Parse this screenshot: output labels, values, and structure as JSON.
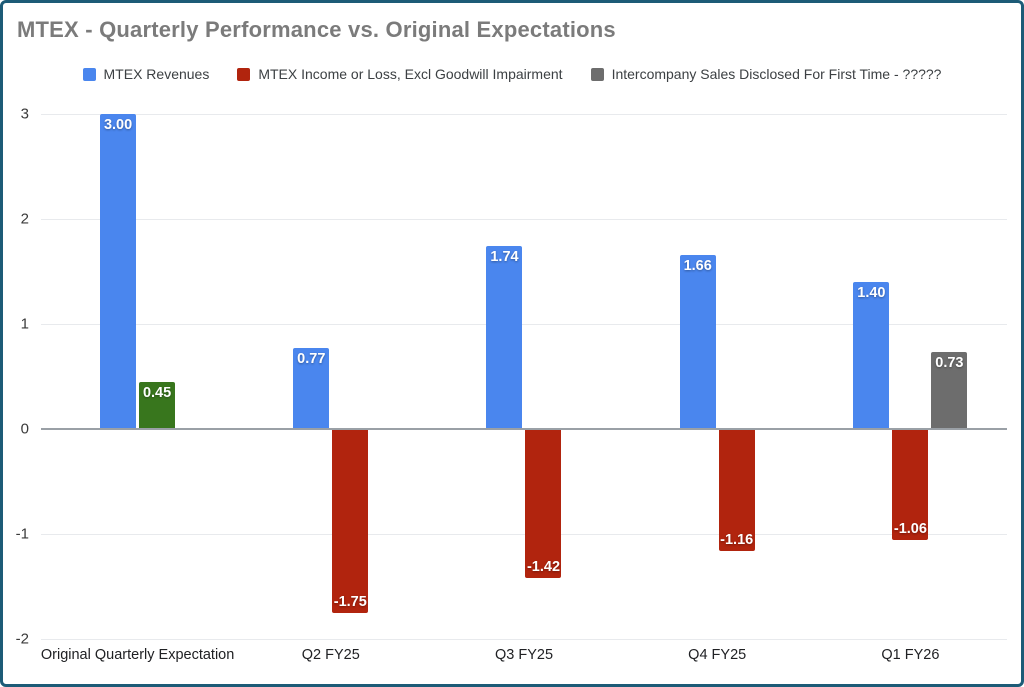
{
  "window": {
    "title": "MTEX - Quarterly Performance vs. Original Expectations"
  },
  "colors": {
    "frame_border": "#1d5b77",
    "title_text": "#7b7b7b",
    "grid_line": "#e8eaed",
    "zero_line": "#9aa0a6",
    "revenues_blue": "#4a86ee",
    "income_red": "#b1240e",
    "expectation_green": "#38761d",
    "intercompany_gray": "#6d6d6d",
    "bar_value_text": "#ffffff"
  },
  "chart_data": {
    "type": "bar",
    "title": "MTEX - Quarterly Performance vs. Original Expectations",
    "legend_position": "top",
    "grid": true,
    "ylim": [
      -2,
      3
    ],
    "yticks": [
      3,
      2,
      1,
      0,
      -1,
      -2
    ],
    "categories": [
      "Original Quarterly Expectation",
      "Q2 FY25",
      "Q3 FY25",
      "Q4 FY25",
      "Q1 FY26"
    ],
    "series": [
      {
        "key": "revenues",
        "name": "MTEX Revenues",
        "color": "#4a86ee"
      },
      {
        "key": "income",
        "name": "MTEX Income or Loss, Excl Goodwill Impairment",
        "color": "#b1240e"
      },
      {
        "key": "intercompany",
        "name": "Intercompany Sales Disclosed For First Time - ?????",
        "color": "#6d6d6d"
      }
    ],
    "groups": [
      {
        "category": "Original Quarterly Expectation",
        "bars": [
          {
            "series": 0,
            "value": 3.0,
            "label": "3.00"
          },
          {
            "series": 1,
            "value": 0.45,
            "label": "0.45",
            "color": "#38761d"
          }
        ]
      },
      {
        "category": "Q2 FY25",
        "bars": [
          {
            "series": 0,
            "value": 0.77,
            "label": "0.77"
          },
          {
            "series": 1,
            "value": -1.75,
            "label": "-1.75"
          }
        ]
      },
      {
        "category": "Q3 FY25",
        "bars": [
          {
            "series": 0,
            "value": 1.74,
            "label": "1.74"
          },
          {
            "series": 1,
            "value": -1.42,
            "label": "-1.42"
          }
        ]
      },
      {
        "category": "Q4 FY25",
        "bars": [
          {
            "series": 0,
            "value": 1.66,
            "label": "1.66"
          },
          {
            "series": 1,
            "value": -1.16,
            "label": "-1.16"
          }
        ]
      },
      {
        "category": "Q1 FY26",
        "bars": [
          {
            "series": 0,
            "value": 1.4,
            "label": "1.40"
          },
          {
            "series": 1,
            "value": -1.06,
            "label": "-1.06"
          },
          {
            "series": 2,
            "value": 0.73,
            "label": "0.73"
          }
        ]
      }
    ]
  }
}
